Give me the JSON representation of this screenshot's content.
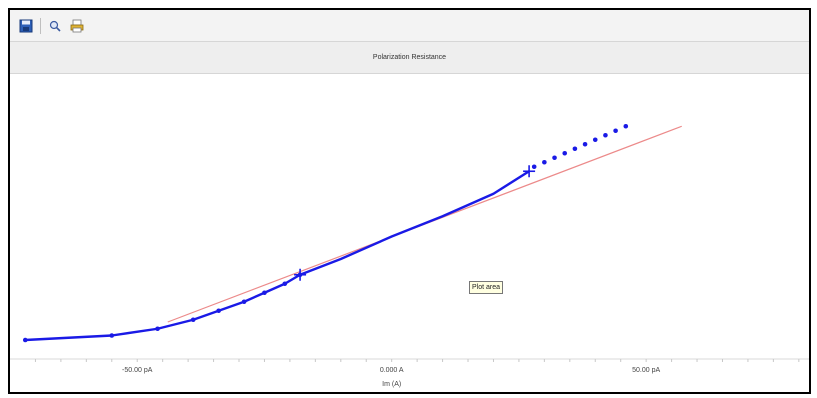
{
  "toolbar": {
    "buttons": [
      {
        "icon": "save-icon"
      },
      {
        "icon": "zoom-icon"
      },
      {
        "icon": "print-icon"
      }
    ]
  },
  "chart_data": {
    "type": "line",
    "title": "Polarization Resistance",
    "xlabel": "Im (A)",
    "xticks": [
      {
        "value": -50,
        "label": "-50.00 pA"
      },
      {
        "value": 0,
        "label": "0.000 A"
      },
      {
        "value": 50,
        "label": "50.00 pA"
      }
    ],
    "xlim": [
      -75,
      82
    ],
    "ylim": [
      0,
      1
    ],
    "grid": false,
    "colors": {
      "data": "#1a1ae6",
      "fit": "#ec8a8a",
      "cursor": "#1a1ae6"
    },
    "series": [
      {
        "kind": "measured-markers",
        "points": [
          [
            -72,
            0.04
          ],
          [
            -55,
            0.06
          ],
          [
            -46,
            0.09
          ],
          [
            -39,
            0.13
          ],
          [
            -34,
            0.17
          ],
          [
            -29,
            0.21
          ],
          [
            -25,
            0.25
          ],
          [
            -21,
            0.29
          ],
          [
            -18,
            0.33
          ]
        ]
      },
      {
        "kind": "measured-curve",
        "points": [
          [
            -72,
            0.04
          ],
          [
            -55,
            0.06
          ],
          [
            -46,
            0.09
          ],
          [
            -39,
            0.13
          ],
          [
            -34,
            0.17
          ],
          [
            -29,
            0.21
          ],
          [
            -25,
            0.25
          ],
          [
            -21,
            0.29
          ],
          [
            -18,
            0.33
          ],
          [
            -10,
            0.4
          ],
          [
            0,
            0.5
          ],
          [
            10,
            0.59
          ],
          [
            20,
            0.69
          ],
          [
            27,
            0.79
          ]
        ]
      },
      {
        "kind": "measured-markers-upper",
        "points": [
          [
            28,
            0.81
          ],
          [
            30,
            0.83
          ],
          [
            32,
            0.85
          ],
          [
            34,
            0.87
          ],
          [
            36,
            0.89
          ],
          [
            38,
            0.91
          ],
          [
            40,
            0.93
          ],
          [
            42,
            0.95
          ],
          [
            44,
            0.97
          ],
          [
            46,
            0.99
          ]
        ]
      },
      {
        "kind": "fit-line",
        "points": [
          [
            -44,
            0.12
          ],
          [
            57,
            0.99
          ]
        ]
      }
    ],
    "cursors": [
      [
        -18,
        0.33
      ],
      [
        27,
        0.79
      ]
    ]
  },
  "tooltip": {
    "text": "Plot area"
  }
}
